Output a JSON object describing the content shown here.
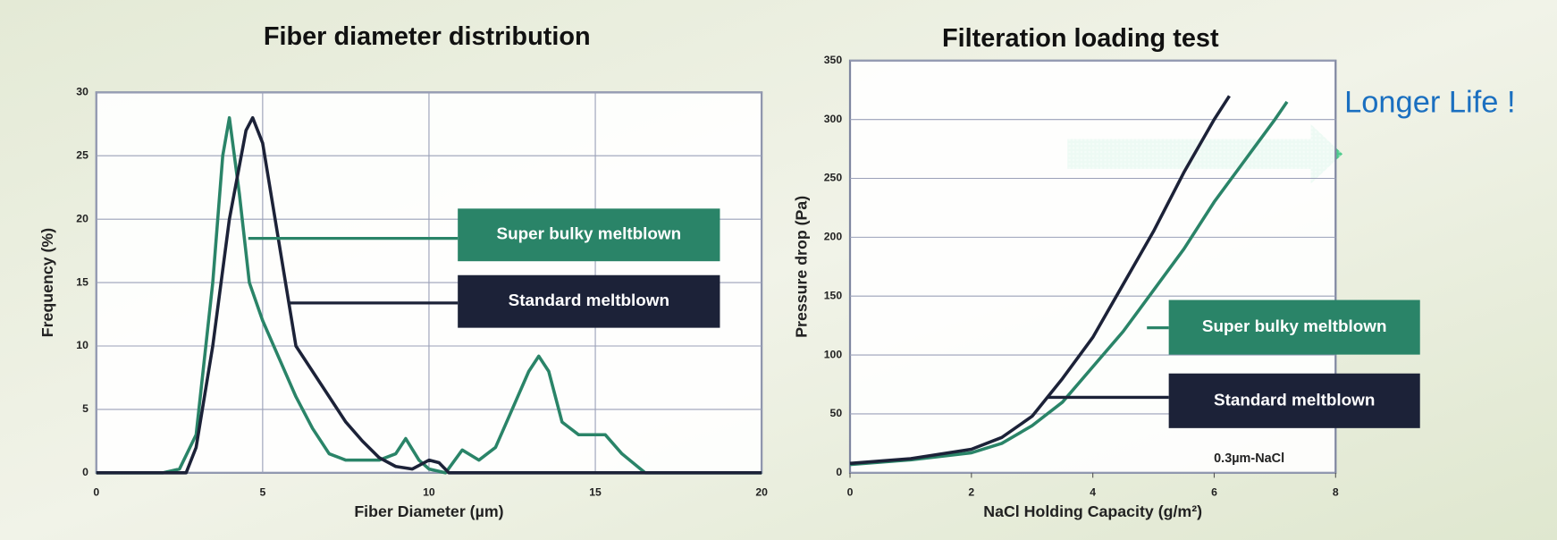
{
  "chart_data": [
    {
      "type": "line",
      "title": "Fiber diameter distribution",
      "x_label": "Fiber Diameter (µm)",
      "y_label": "Frequency (%)",
      "xlim": [
        0,
        20
      ],
      "xticks": [
        0,
        5,
        10,
        15,
        20
      ],
      "ylim": [
        0,
        30
      ],
      "yticks": [
        0,
        5,
        10,
        15,
        20,
        25,
        30
      ],
      "grid": true,
      "grid_x": true,
      "series": [
        {
          "name": "Super bulky meltblown",
          "color": "#2a8468",
          "x": [
            0,
            2,
            2.5,
            3,
            3.5,
            3.8,
            4.0,
            4.3,
            4.6,
            5,
            5.5,
            6,
            6.5,
            7,
            7.5,
            8,
            8.5,
            9,
            9.3,
            9.7,
            10,
            10.5,
            11,
            11.5,
            12,
            12.5,
            13,
            13.3,
            13.6,
            14,
            14.5,
            15,
            15.3,
            15.8,
            16.5,
            20
          ],
          "values": [
            0,
            0,
            0.3,
            3,
            15,
            25,
            28,
            22,
            15,
            12,
            9,
            6,
            3.5,
            1.5,
            1,
            1,
            1,
            1.5,
            2.7,
            1,
            0.3,
            0,
            1.8,
            1,
            2,
            5,
            8,
            9.2,
            8,
            4,
            3,
            3,
            3,
            1.5,
            0,
            0
          ]
        },
        {
          "name": "Standard meltblown",
          "color": "#1c2238",
          "x": [
            0,
            2.7,
            3,
            3.5,
            4,
            4.5,
            4.7,
            5,
            5.5,
            6,
            6.5,
            7,
            7.5,
            8,
            8.5,
            9,
            9.5,
            10,
            10.3,
            10.6,
            20
          ],
          "values": [
            0,
            0,
            2,
            10,
            20,
            27,
            28,
            26,
            18,
            10,
            8,
            6,
            4,
            2.5,
            1.2,
            0.5,
            0.3,
            1,
            0.8,
            0,
            0
          ]
        }
      ]
    },
    {
      "type": "line",
      "title": "Filteration loading test",
      "x_label": "NaCl Holding Capacity  (g/m²)",
      "y_label": "Pressure drop  (Pa)",
      "xlim": [
        0,
        8
      ],
      "xticks": [
        0,
        2,
        4,
        6,
        8
      ],
      "ylim": [
        0,
        350
      ],
      "yticks": [
        0,
        50,
        100,
        150,
        200,
        250,
        300,
        350
      ],
      "grid": true,
      "grid_x": false,
      "annotations": [
        "0.3µm-NaCl",
        "Longer Life !"
      ],
      "series": [
        {
          "name": "Super bulky meltblown",
          "color": "#2a8468",
          "x": [
            0,
            1,
            2,
            2.5,
            3,
            3.5,
            4,
            4.5,
            5,
            5.5,
            6,
            6.5,
            7,
            7.2
          ],
          "values": [
            7,
            11,
            17,
            25,
            40,
            60,
            90,
            120,
            155,
            190,
            230,
            265,
            300,
            315
          ]
        },
        {
          "name": "Standard meltblown",
          "color": "#1c2238",
          "x": [
            0,
            1,
            2,
            2.5,
            3,
            3.5,
            4,
            4.5,
            5,
            5.5,
            6,
            6.25
          ],
          "values": [
            8,
            12,
            20,
            30,
            48,
            80,
            115,
            160,
            205,
            255,
            300,
            320
          ]
        }
      ]
    }
  ]
}
